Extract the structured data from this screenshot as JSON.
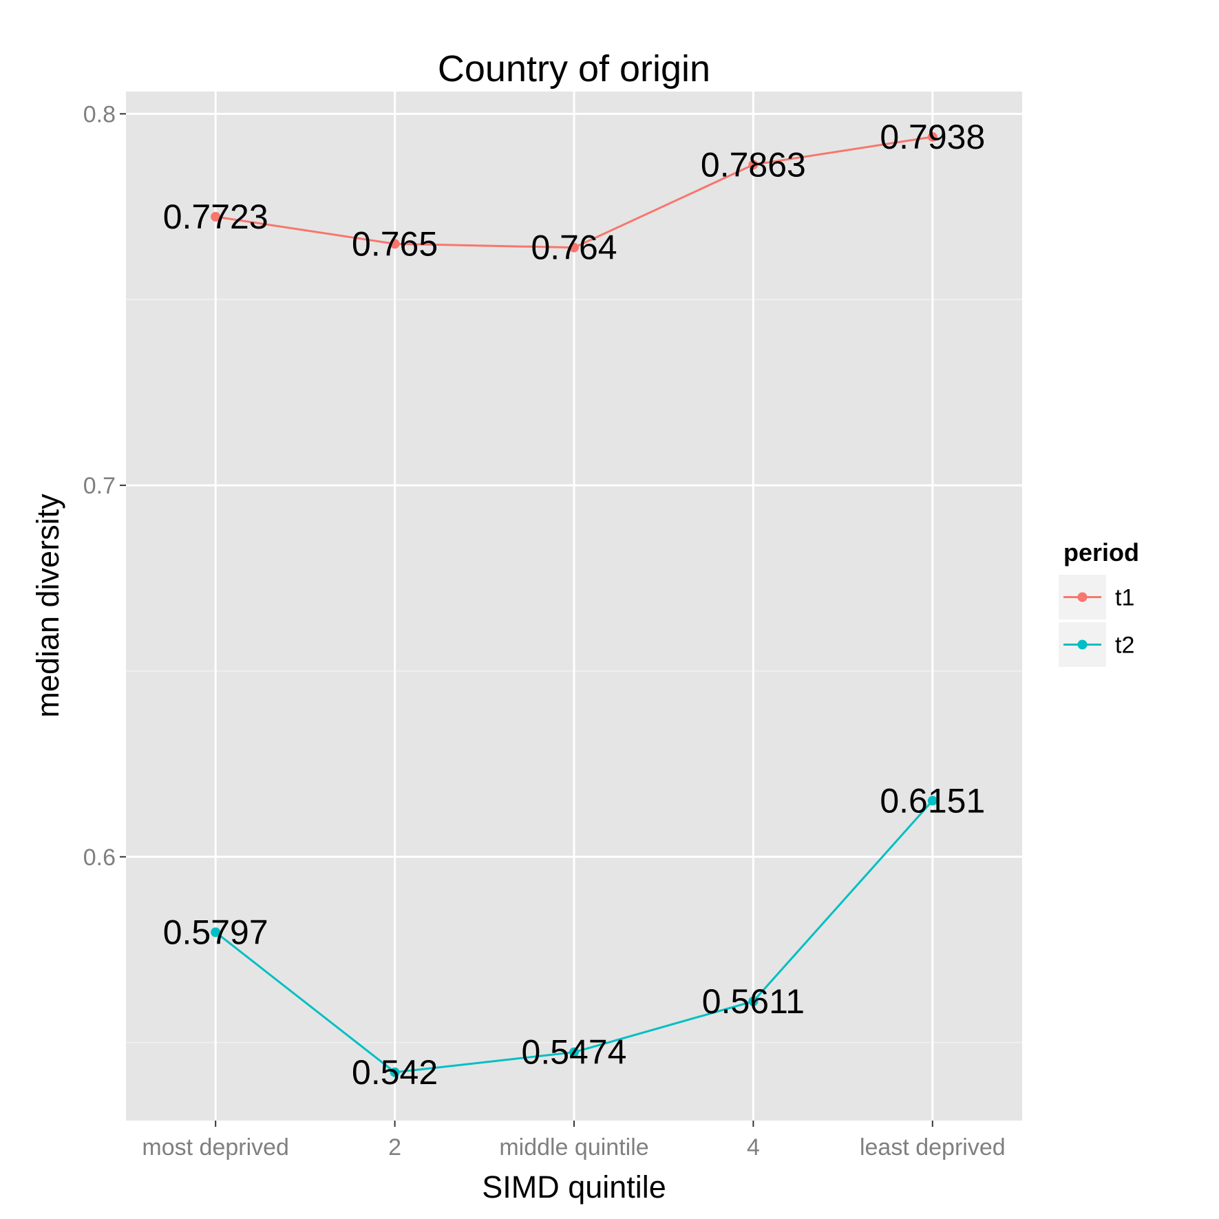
{
  "chart_data": {
    "type": "line",
    "title": "Country of origin",
    "xlabel": "SIMD quintile",
    "ylabel": "median diversity",
    "categories": [
      "most deprived",
      "2",
      "middle quintile",
      "4",
      "least deprived"
    ],
    "ylim": [
      0.529,
      0.806
    ],
    "yticks": [
      0.6,
      0.7,
      0.8
    ],
    "ytick_labels": [
      "0.6",
      "0.7",
      "0.8"
    ],
    "grid": true,
    "legend": {
      "title": "period",
      "position": "right"
    },
    "series": [
      {
        "name": "t1",
        "color": "#F8766D",
        "values": [
          0.7723,
          0.765,
          0.764,
          0.7863,
          0.7938
        ],
        "labels": [
          "0.7723",
          "0.765",
          "0.764",
          "0.7863",
          "0.7938"
        ]
      },
      {
        "name": "t2",
        "color": "#00BFC4",
        "values": [
          0.5797,
          0.542,
          0.5474,
          0.5611,
          0.6151
        ],
        "labels": [
          "0.5797",
          "0.542",
          "0.5474",
          "0.5611",
          "0.6151"
        ]
      }
    ],
    "colors": {
      "panel_background": "#E5E5E5",
      "grid_major": "#FFFFFF",
      "grid_minor": "#F2F2F2",
      "tick_text": "#7F7F7F",
      "text": "#000000"
    }
  }
}
